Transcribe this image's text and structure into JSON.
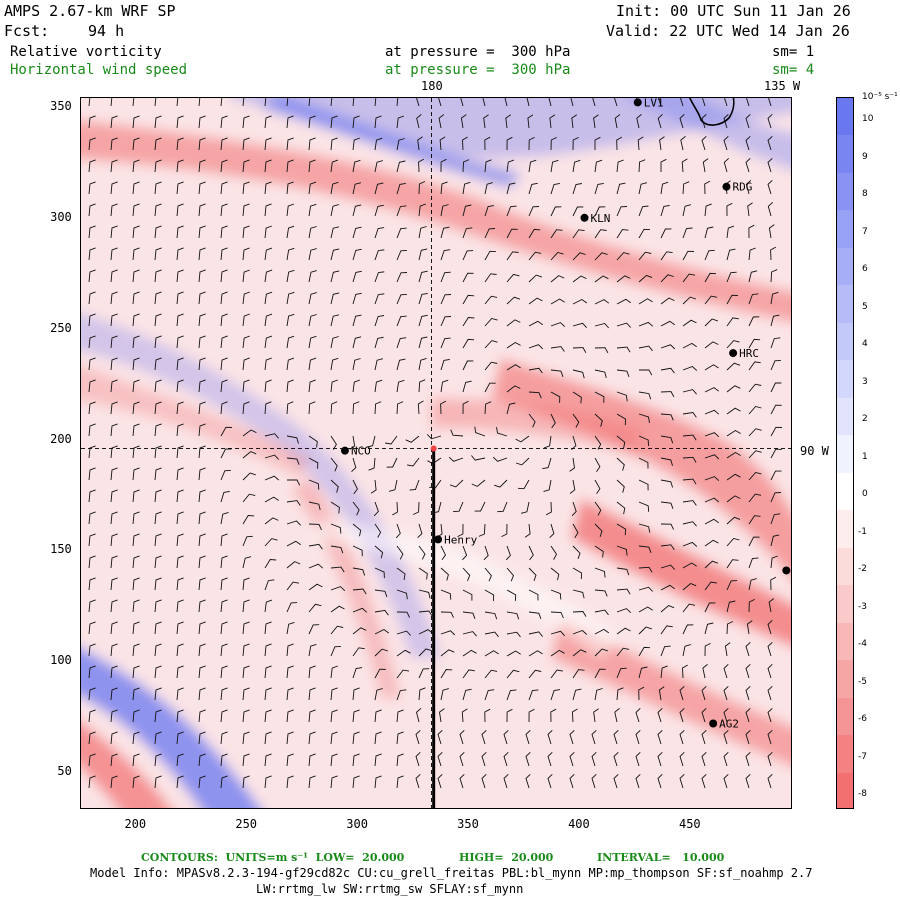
{
  "header": {
    "title": "AMPS 2.67-km WRF SP",
    "init": "Init: 00 UTC Sun 11 Jan 26",
    "fcst_label": "Fcst:",
    "fcst_value": "94 h",
    "valid": "Valid: 22 UTC Wed 14 Jan 26"
  },
  "fields": [
    {
      "name": "Relative vorticity",
      "level": "at pressure =  300 hPa",
      "sm": "sm= 1",
      "color": "#000000"
    },
    {
      "name": "Horizontal wind speed",
      "level": "at pressure =  300 hPa",
      "sm": "sm= 4",
      "color": "#1a8a1a"
    }
  ],
  "map": {
    "x_ticks": [
      200,
      250,
      300,
      350,
      400,
      450
    ],
    "y_ticks": [
      50,
      100,
      150,
      200,
      250,
      300,
      350
    ],
    "xlim": [
      175,
      496
    ],
    "ylim": [
      33,
      354
    ],
    "meridian_label_180": "180",
    "meridian_label_135w": "135 W",
    "lat_label_90w": "90 W",
    "grid_lines": "dashed",
    "stations": [
      {
        "id": "RDG",
        "x": 466,
        "y": 314
      },
      {
        "id": "KLN",
        "x": 402,
        "y": 300
      },
      {
        "id": "HRC",
        "x": 469,
        "y": 239
      },
      {
        "id": "NCO",
        "x": 294,
        "y": 195
      },
      {
        "id": "Henry",
        "x": 336,
        "y": 155
      },
      {
        "id": "AG2",
        "x": 460,
        "y": 72
      },
      {
        "id": "LV1",
        "x": 426,
        "y": 352
      }
    ],
    "unlabeled_station": {
      "x": 493,
      "y": 141
    }
  },
  "colorbar": {
    "units": "10⁻⁵ s⁻¹",
    "levels": [
      "10",
      "9",
      "8",
      "7",
      "6",
      "5",
      "4",
      "3",
      "2",
      "1",
      "0",
      "-1",
      "-2",
      "-3",
      "-4",
      "-5",
      "-6",
      "-7",
      "-8"
    ],
    "positive_color": "#6a78f0",
    "negative_color": "#f27070"
  },
  "footer": {
    "contours_units": "CONTOURS:  UNITS=m s⁻¹  LOW=  20.000",
    "contours_high": "HIGH=  20.000",
    "contours_interval": "INTERVAL=   10.000",
    "model_info_1": "Model Info: MPASv8.2.3-194-gf29cd82c CU:cu_grell_freitas PBL:bl_mynn MP:mp_thompson SF:sf_noahmp 2.7",
    "model_info_2": "LW:rrtmg_lw SW:rrtmg_sw SFLAY:sf_mynn"
  }
}
